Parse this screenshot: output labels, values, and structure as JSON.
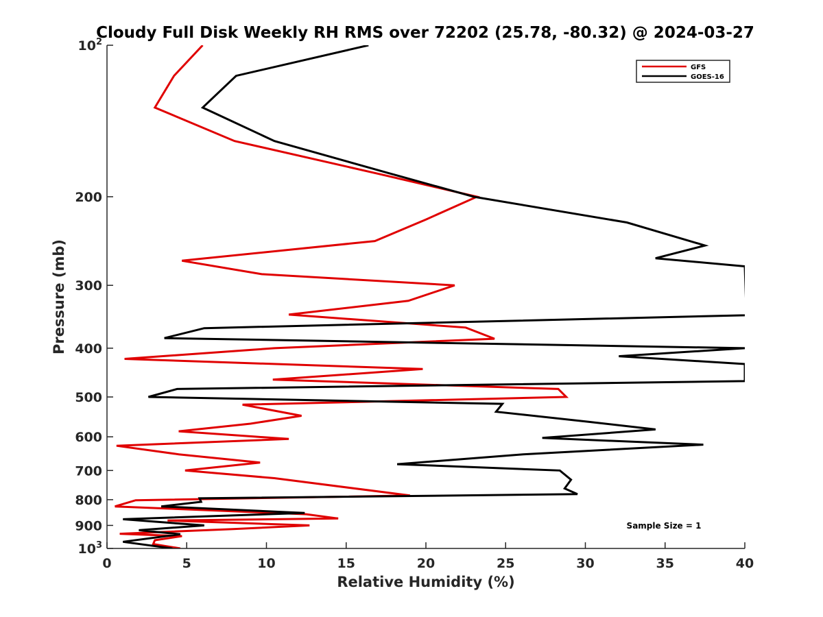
{
  "chart_data": {
    "type": "line",
    "title": "Cloudy Full Disk Weekly RH RMS over 72202 (25.78, -80.32) @ 2024-03-27",
    "xlabel": "Relative Humidity (%)",
    "ylabel": "Pressure (mb)",
    "xlim": [
      0,
      40
    ],
    "ylim": [
      100,
      1000
    ],
    "y_scale": "log",
    "y_reversed": true,
    "x_ticks": [
      "0",
      "5",
      "10",
      "15",
      "20",
      "25",
      "30",
      "35",
      "40"
    ],
    "y_ticks": [
      {
        "value": 100,
        "base": "10",
        "exp": "2"
      },
      {
        "value": 200,
        "label": "200"
      },
      {
        "value": 300,
        "label": "300"
      },
      {
        "value": 400,
        "label": "400"
      },
      {
        "value": 500,
        "label": "500"
      },
      {
        "value": 600,
        "label": "600"
      },
      {
        "value": 700,
        "label": "700"
      },
      {
        "value": 800,
        "label": "800"
      },
      {
        "value": 900,
        "label": "900"
      },
      {
        "value": 1000,
        "base": "10",
        "exp": "3"
      }
    ],
    "grid": false,
    "legend_position": "top-right",
    "annotation": "Sample Size = 1",
    "series": [
      {
        "name": "GFS",
        "color": "#e00000",
        "points": [
          [
            6.0,
            100
          ],
          [
            4.2,
            115
          ],
          [
            3.0,
            133
          ],
          [
            8.0,
            155
          ],
          [
            17.0,
            180
          ],
          [
            23.2,
            200
          ],
          [
            20.0,
            222
          ],
          [
            16.8,
            245
          ],
          [
            4.7,
            268
          ],
          [
            9.7,
            285
          ],
          [
            21.8,
            300
          ],
          [
            18.9,
            322
          ],
          [
            11.4,
            343
          ],
          [
            22.5,
            364
          ],
          [
            24.3,
            383
          ],
          [
            10.5,
            400
          ],
          [
            1.1,
            420
          ],
          [
            19.8,
            440
          ],
          [
            10.4,
            462
          ],
          [
            28.3,
            482
          ],
          [
            28.8,
            500
          ],
          [
            8.5,
            518
          ],
          [
            12.2,
            545
          ],
          [
            9.0,
            565
          ],
          [
            4.5,
            585
          ],
          [
            11.4,
            606
          ],
          [
            0.6,
            625
          ],
          [
            4.5,
            650
          ],
          [
            9.6,
            675
          ],
          [
            4.9,
            700
          ],
          [
            10.5,
            725
          ],
          [
            19.0,
            785
          ],
          [
            1.8,
            802
          ],
          [
            0.5,
            825
          ],
          [
            12.5,
            855
          ],
          [
            14.5,
            872
          ],
          [
            3.8,
            880
          ],
          [
            12.7,
            900
          ],
          [
            7.9,
            915
          ],
          [
            0.8,
            935
          ],
          [
            4.7,
            945
          ],
          [
            3.0,
            963
          ],
          [
            2.9,
            980
          ],
          [
            4.6,
            1000
          ]
        ]
      },
      {
        "name": "GOES-16",
        "color": "#000000",
        "points": [
          [
            16.4,
            100
          ],
          [
            8.1,
            115
          ],
          [
            6.0,
            133
          ],
          [
            10.5,
            155
          ],
          [
            17.8,
            180
          ],
          [
            23.0,
            200
          ],
          [
            32.6,
            225
          ],
          [
            37.5,
            250
          ],
          [
            34.4,
            265
          ],
          [
            40.0,
            275
          ],
          [
            40.1,
            344
          ],
          [
            6.1,
            365
          ],
          [
            3.6,
            382
          ],
          [
            40.0,
            400
          ],
          [
            32.1,
            415
          ],
          [
            40.0,
            430
          ],
          [
            40.0,
            465
          ],
          [
            4.4,
            482
          ],
          [
            2.6,
            500
          ],
          [
            24.8,
            516
          ],
          [
            24.4,
            535
          ],
          [
            30.2,
            560
          ],
          [
            34.4,
            580
          ],
          [
            27.3,
            603
          ],
          [
            37.4,
            622
          ],
          [
            26.1,
            650
          ],
          [
            18.2,
            680
          ],
          [
            28.4,
            700
          ],
          [
            29.1,
            730
          ],
          [
            28.7,
            760
          ],
          [
            29.5,
            780
          ],
          [
            5.8,
            795
          ],
          [
            5.9,
            808
          ],
          [
            3.4,
            825
          ],
          [
            12.4,
            850
          ],
          [
            1.0,
            875
          ],
          [
            6.1,
            900
          ],
          [
            2.0,
            920
          ],
          [
            4.6,
            937
          ],
          [
            1.0,
            970
          ],
          [
            4.1,
            1000
          ]
        ]
      }
    ]
  }
}
